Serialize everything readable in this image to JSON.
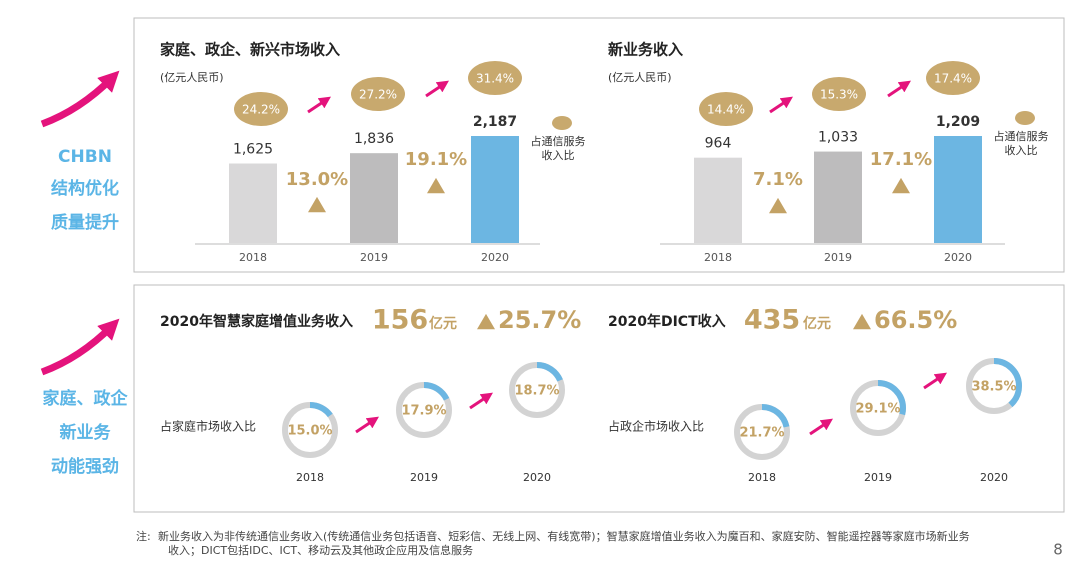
{
  "side_labels": [
    {
      "lines": [
        "CHBN",
        "结构优化",
        "质量提升"
      ]
    },
    {
      "lines": [
        "家庭、政企",
        "新业务",
        "动能强劲"
      ]
    }
  ],
  "chart_data": [
    {
      "type": "bar",
      "title": "家庭、政企、新兴市场收入",
      "subtitle": "(亿元人民币)",
      "categories": [
        "2018",
        "2019",
        "2020"
      ],
      "values": [
        1625,
        1836,
        2187
      ],
      "value_labels": [
        "1,625",
        "1,836",
        "2,187"
      ],
      "colors": [
        "#d9d8d9",
        "#bdbcbd",
        "#6cb6e2"
      ],
      "share": {
        "name": "占通信服务收入比",
        "color": "#c8a96e",
        "values": [
          24.2,
          27.2,
          31.4
        ],
        "value_labels": [
          "24.2%",
          "27.2%",
          "31.4%"
        ]
      },
      "growth": {
        "color": "#c3a265",
        "values": [
          13.0,
          19.1
        ],
        "value_labels": [
          "13.0%",
          "19.1%"
        ]
      }
    },
    {
      "type": "bar",
      "title": "新业务收入",
      "subtitle": "(亿元人民币)",
      "categories": [
        "2018",
        "2019",
        "2020"
      ],
      "values": [
        964,
        1033,
        1209
      ],
      "value_labels": [
        "964",
        "1,033",
        "1,209"
      ],
      "colors": [
        "#d9d8d9",
        "#bdbcbd",
        "#6cb6e2"
      ],
      "share": {
        "name": "占通信服务收入比",
        "color": "#c8a96e",
        "values": [
          14.4,
          15.3,
          17.4
        ],
        "value_labels": [
          "14.4%",
          "15.3%",
          "17.4%"
        ]
      },
      "growth": {
        "color": "#c3a265",
        "values": [
          7.1,
          17.1
        ],
        "value_labels": [
          "7.1%",
          "17.1%"
        ]
      }
    },
    {
      "type": "ring",
      "title": "2020年智慧家庭增值业务收入",
      "total": 156,
      "unit": "亿元",
      "total_growth": 25.7,
      "total_growth_label": "25.7%",
      "ring_label": "占家庭市场收入比",
      "categories": [
        "2018",
        "2019",
        "2020"
      ],
      "values": [
        15.0,
        17.9,
        18.7
      ],
      "value_labels": [
        "15.0%",
        "17.9%",
        "18.7%"
      ],
      "color": "#6cb6e2",
      "track_color": "#d3d3d3",
      "text_color": "#c3a265"
    },
    {
      "type": "ring",
      "title": "2020年DICT收入",
      "total": 435,
      "unit": "亿元",
      "total_growth": 66.5,
      "total_growth_label": "66.5%",
      "ring_label": "占政企市场收入比",
      "categories": [
        "2018",
        "2019",
        "2020"
      ],
      "values": [
        21.7,
        29.1,
        38.5
      ],
      "value_labels": [
        "21.7%",
        "29.1%",
        "38.5%"
      ],
      "color": "#6cb6e2",
      "track_color": "#d3d3d3",
      "text_color": "#c3a265"
    }
  ],
  "note": {
    "label": "注:",
    "lines": [
      "新业务收入为非传统通信业务收入(传统通信业务包括语音、短彩信、无线上网、有线宽带)；智慧家庭增值业务收入为魔百和、家庭安防、智能遥控器等家庭市场新业务",
      "收入；DICT包括IDC、ICT、移动云及其他政企应用及信息服务"
    ]
  },
  "page_number": 8
}
